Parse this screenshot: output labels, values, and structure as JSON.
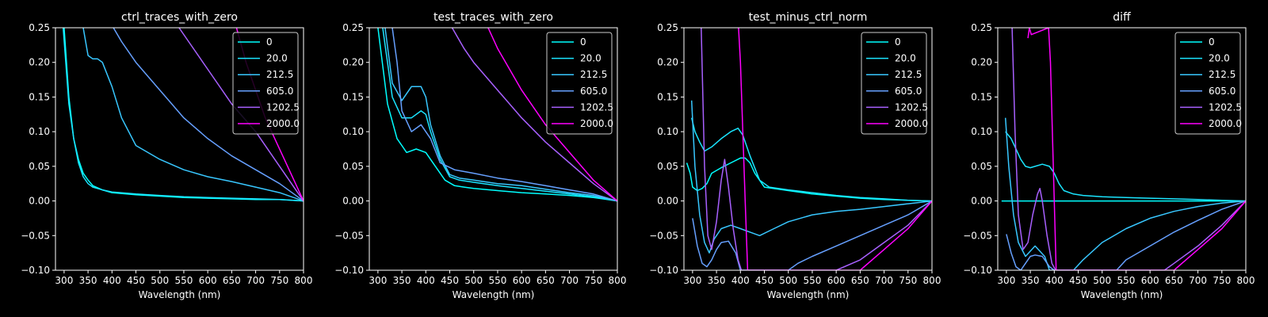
{
  "figure": {
    "background": "#000000",
    "foreground": "#ffffff"
  },
  "chart_data": [
    {
      "type": "line",
      "title": "ctrl_traces_with_zero",
      "xlabel": "Wavelength (nm)",
      "ylabel": "",
      "xlim": [
        282,
        800
      ],
      "ylim": [
        -0.1,
        0.25
      ],
      "xticks": [
        "300",
        "350",
        "400",
        "450",
        "500",
        "550",
        "600",
        "650",
        "700",
        "750",
        "800"
      ],
      "yticks": [
        "−0.10",
        "−0.05",
        "0.00",
        "0.05",
        "0.10",
        "0.15",
        "0.20",
        "0.25"
      ],
      "legend": "top-right",
      "grid": false,
      "series": [
        {
          "name": "0",
          "color": "#00ffff",
          "x": [
            300,
            310,
            320,
            330,
            340,
            350,
            360,
            380,
            400,
            450,
            500,
            550,
            600,
            650,
            700,
            750,
            800
          ],
          "y": [
            0.25,
            0.15,
            0.09,
            0.06,
            0.04,
            0.03,
            0.022,
            0.016,
            0.012,
            0.009,
            0.007,
            0.005,
            0.004,
            0.003,
            0.002,
            0.002,
            0.0
          ]
        },
        {
          "name": "20.0",
          "color": "#1ae5ff",
          "x": [
            298,
            310,
            320,
            330,
            340,
            350,
            360,
            380,
            400,
            450,
            500,
            550,
            600,
            650,
            700,
            750,
            800
          ],
          "y": [
            0.25,
            0.14,
            0.09,
            0.055,
            0.035,
            0.025,
            0.02,
            0.016,
            0.013,
            0.01,
            0.008,
            0.006,
            0.005,
            0.004,
            0.003,
            0.002,
            0.0
          ]
        },
        {
          "name": "212.5",
          "color": "#38c7ff",
          "x": [
            340,
            350,
            360,
            370,
            380,
            400,
            420,
            450,
            500,
            550,
            600,
            650,
            700,
            750,
            800
          ],
          "y": [
            0.25,
            0.21,
            0.205,
            0.205,
            0.2,
            0.165,
            0.12,
            0.08,
            0.06,
            0.045,
            0.035,
            0.028,
            0.02,
            0.012,
            0.0
          ]
        },
        {
          "name": "605.0",
          "color": "#66a0ff",
          "x": [
            403,
            420,
            450,
            500,
            550,
            600,
            650,
            700,
            750,
            800
          ],
          "y": [
            0.25,
            0.23,
            0.2,
            0.16,
            0.12,
            0.09,
            0.065,
            0.045,
            0.025,
            0.0
          ]
        },
        {
          "name": "1202.5",
          "color": "#a860ff",
          "x": [
            540,
            560,
            600,
            650,
            700,
            750,
            800
          ],
          "y": [
            0.25,
            0.23,
            0.19,
            0.14,
            0.1,
            0.05,
            0.0
          ]
        },
        {
          "name": "2000.0",
          "color": "#ff00ff",
          "x": [
            660,
            680,
            700,
            720,
            740,
            760,
            780,
            800
          ],
          "y": [
            0.25,
            0.2,
            0.16,
            0.12,
            0.09,
            0.06,
            0.03,
            0.0
          ]
        }
      ]
    },
    {
      "type": "line",
      "title": "test_traces_with_zero",
      "xlabel": "Wavelength (nm)",
      "ylabel": "",
      "xlim": [
        282,
        800
      ],
      "ylim": [
        -0.1,
        0.25
      ],
      "xticks": [
        "300",
        "350",
        "400",
        "450",
        "500",
        "550",
        "600",
        "650",
        "700",
        "750",
        "800"
      ],
      "yticks": [
        "−0.10",
        "−0.05",
        "0.00",
        "0.05",
        "0.10",
        "0.15",
        "0.20",
        "0.25"
      ],
      "legend": "top-right",
      "grid": false,
      "series": [
        {
          "name": "0",
          "color": "#00ffff",
          "x": [
            300,
            320,
            340,
            360,
            380,
            400,
            420,
            440,
            460,
            480,
            500,
            550,
            600,
            650,
            700,
            750,
            800
          ],
          "y": [
            0.25,
            0.14,
            0.09,
            0.07,
            0.075,
            0.07,
            0.05,
            0.03,
            0.022,
            0.02,
            0.018,
            0.015,
            0.012,
            0.01,
            0.008,
            0.005,
            0.0
          ]
        },
        {
          "name": "20.0",
          "color": "#1ae5ff",
          "x": [
            310,
            330,
            350,
            370,
            390,
            400,
            410,
            430,
            450,
            470,
            500,
            550,
            600,
            650,
            700,
            750,
            800
          ],
          "y": [
            0.25,
            0.15,
            0.12,
            0.12,
            0.13,
            0.125,
            0.1,
            0.06,
            0.035,
            0.03,
            0.027,
            0.022,
            0.018,
            0.014,
            0.01,
            0.006,
            0.0
          ]
        },
        {
          "name": "212.5",
          "color": "#38c7ff",
          "x": [
            315,
            330,
            350,
            370,
            390,
            400,
            410,
            430,
            450,
            470,
            500,
            550,
            600,
            650,
            700,
            750,
            800
          ],
          "y": [
            0.25,
            0.17,
            0.145,
            0.165,
            0.165,
            0.15,
            0.11,
            0.065,
            0.038,
            0.033,
            0.03,
            0.025,
            0.022,
            0.017,
            0.012,
            0.008,
            0.0
          ]
        },
        {
          "name": "605.0",
          "color": "#66a0ff",
          "x": [
            330,
            340,
            350,
            370,
            390,
            410,
            430,
            460,
            500,
            550,
            600,
            650,
            700,
            750,
            800
          ],
          "y": [
            0.25,
            0.2,
            0.13,
            0.1,
            0.11,
            0.09,
            0.055,
            0.045,
            0.04,
            0.033,
            0.028,
            0.022,
            0.016,
            0.01,
            0.0
          ]
        },
        {
          "name": "1202.5",
          "color": "#a860ff",
          "x": [
            455,
            480,
            500,
            550,
            600,
            650,
            700,
            750,
            800
          ],
          "y": [
            0.25,
            0.22,
            0.2,
            0.16,
            0.12,
            0.085,
            0.055,
            0.025,
            0.0
          ]
        },
        {
          "name": "2000.0",
          "color": "#ff00ff",
          "x": [
            530,
            550,
            600,
            650,
            700,
            750,
            800
          ],
          "y": [
            0.25,
            0.22,
            0.16,
            0.11,
            0.07,
            0.03,
            0.0
          ]
        }
      ]
    },
    {
      "type": "line",
      "title": "test_minus_ctrl_norm",
      "xlabel": "Wavelength (nm)",
      "ylabel": "",
      "xlim": [
        282,
        800
      ],
      "ylim": [
        -0.1,
        0.25
      ],
      "xticks": [
        "300",
        "350",
        "400",
        "450",
        "500",
        "550",
        "600",
        "650",
        "700",
        "750",
        "800"
      ],
      "yticks": [
        "−0.10",
        "−0.05",
        "0.00",
        "0.05",
        "0.10",
        "0.15",
        "0.20",
        "0.25"
      ],
      "legend": "top-right",
      "grid": false,
      "series": [
        {
          "name": "0",
          "color": "#00ffff",
          "x": [
            288,
            295,
            300,
            310,
            320,
            330,
            340,
            360,
            380,
            400,
            410,
            420,
            430,
            450,
            500,
            550,
            600,
            650,
            700,
            750,
            800
          ],
          "y": [
            0.055,
            0.04,
            0.02,
            0.015,
            0.018,
            0.025,
            0.04,
            0.048,
            0.055,
            0.062,
            0.062,
            0.055,
            0.04,
            0.02,
            0.015,
            0.01,
            0.007,
            0.004,
            0.002,
            0.001,
            0.0
          ]
        },
        {
          "name": "20.0",
          "color": "#1ae5ff",
          "x": [
            298,
            305,
            315,
            325,
            340,
            360,
            380,
            395,
            405,
            420,
            440,
            460,
            500,
            550,
            600,
            650,
            700,
            750,
            800
          ],
          "y": [
            0.12,
            0.1,
            0.085,
            0.072,
            0.078,
            0.09,
            0.1,
            0.105,
            0.095,
            0.065,
            0.03,
            0.02,
            0.016,
            0.012,
            0.008,
            0.005,
            0.003,
            0.001,
            0.0
          ]
        },
        {
          "name": "212.5",
          "color": "#38c7ff",
          "x": [
            298,
            305,
            315,
            325,
            335,
            345,
            360,
            380,
            400,
            420,
            440,
            470,
            500,
            550,
            600,
            650,
            700,
            750,
            800
          ],
          "y": [
            0.145,
            0.05,
            -0.02,
            -0.06,
            -0.075,
            -0.055,
            -0.04,
            -0.035,
            -0.04,
            -0.045,
            -0.05,
            -0.04,
            -0.03,
            -0.02,
            -0.015,
            -0.012,
            -0.008,
            -0.004,
            0.0
          ]
        },
        {
          "name": "605.0",
          "color": "#66a0ff",
          "x": [
            300,
            310,
            320,
            330,
            340,
            350,
            360,
            375,
            390,
            400,
            500,
            520,
            550,
            600,
            650,
            700,
            750,
            800
          ],
          "y": [
            -0.025,
            -0.065,
            -0.09,
            -0.095,
            -0.085,
            -0.07,
            -0.06,
            -0.058,
            -0.075,
            -0.1,
            -0.1,
            -0.09,
            -0.08,
            -0.065,
            -0.05,
            -0.035,
            -0.02,
            0.0
          ]
        },
        {
          "name": "1202.5",
          "color": "#a860ff",
          "x": [
            318,
            325,
            332,
            340,
            350,
            360,
            367,
            375,
            385,
            395,
            402,
            600,
            650,
            700,
            750,
            800
          ],
          "y": [
            0.25,
            0.05,
            -0.05,
            -0.07,
            -0.03,
            0.03,
            0.06,
            0.02,
            -0.04,
            -0.085,
            -0.1,
            -0.1,
            -0.085,
            -0.06,
            -0.035,
            0.0
          ]
        },
        {
          "name": "2000.0",
          "color": "#ff00ff",
          "x": [
            396,
            400,
            405,
            410,
            415,
            650,
            700,
            750,
            800
          ],
          "y": [
            0.25,
            0.2,
            0.1,
            0.0,
            -0.1,
            -0.1,
            -0.07,
            -0.04,
            0.0
          ]
        }
      ]
    },
    {
      "type": "line",
      "title": "diff",
      "xlabel": "Wavelength (nm)",
      "ylabel": "",
      "xlim": [
        282,
        800
      ],
      "ylim": [
        -0.1,
        0.25
      ],
      "xticks": [
        "300",
        "350",
        "400",
        "450",
        "500",
        "550",
        "600",
        "650",
        "700",
        "750",
        "800"
      ],
      "yticks": [
        "−0.10",
        "−0.05",
        "0.00",
        "0.05",
        "0.10",
        "0.15",
        "0.20",
        "0.25"
      ],
      "legend": "top-right",
      "grid": false,
      "series": [
        {
          "name": "0",
          "color": "#00ffff",
          "x": [
            290,
            800
          ],
          "y": [
            0.0,
            0.0
          ]
        },
        {
          "name": "20.0",
          "color": "#1ae5ff",
          "x": [
            298,
            310,
            320,
            330,
            340,
            350,
            360,
            375,
            390,
            400,
            410,
            420,
            440,
            460,
            500,
            550,
            600,
            650,
            700,
            750,
            800
          ],
          "y": [
            0.1,
            0.09,
            0.075,
            0.06,
            0.05,
            0.048,
            0.05,
            0.053,
            0.05,
            0.04,
            0.025,
            0.015,
            0.01,
            0.008,
            0.006,
            0.005,
            0.004,
            0.003,
            0.002,
            0.001,
            0.0
          ]
        },
        {
          "name": "212.5",
          "color": "#38c7ff",
          "x": [
            298,
            305,
            315,
            325,
            340,
            360,
            380,
            390,
            400,
            420,
            440,
            460,
            500,
            550,
            600,
            650,
            700,
            750,
            800
          ],
          "y": [
            0.12,
            0.05,
            -0.02,
            -0.06,
            -0.08,
            -0.065,
            -0.08,
            -0.1,
            -0.1,
            -0.1,
            -0.1,
            -0.085,
            -0.06,
            -0.04,
            -0.025,
            -0.015,
            -0.008,
            -0.003,
            0.0
          ]
        },
        {
          "name": "605.0",
          "color": "#66a0ff",
          "x": [
            300,
            310,
            320,
            330,
            340,
            350,
            360,
            375,
            390,
            400,
            530,
            550,
            600,
            650,
            700,
            750,
            800
          ],
          "y": [
            -0.048,
            -0.075,
            -0.095,
            -0.1,
            -0.09,
            -0.08,
            -0.078,
            -0.08,
            -0.095,
            -0.1,
            -0.1,
            -0.085,
            -0.065,
            -0.045,
            -0.028,
            -0.012,
            0.0
          ]
        },
        {
          "name": "1202.5",
          "color": "#a860ff",
          "x": [
            312,
            318,
            325,
            335,
            345,
            355,
            365,
            370,
            375,
            385,
            395,
            403,
            630,
            650,
            700,
            750,
            800
          ],
          "y": [
            0.25,
            0.1,
            -0.02,
            -0.07,
            -0.06,
            -0.02,
            0.01,
            0.018,
            0.0,
            -0.05,
            -0.09,
            -0.1,
            -0.1,
            -0.09,
            -0.065,
            -0.035,
            0.0
          ]
        },
        {
          "name": "2000.0",
          "color": "#ff00ff",
          "x": [
            345,
            348,
            352,
            388,
            392,
            396,
            400,
            404,
            650,
            700,
            750,
            800
          ],
          "y": [
            0.235,
            0.25,
            0.24,
            0.25,
            0.2,
            0.1,
            0.0,
            -0.1,
            -0.1,
            -0.07,
            -0.04,
            0.0
          ]
        }
      ]
    }
  ]
}
